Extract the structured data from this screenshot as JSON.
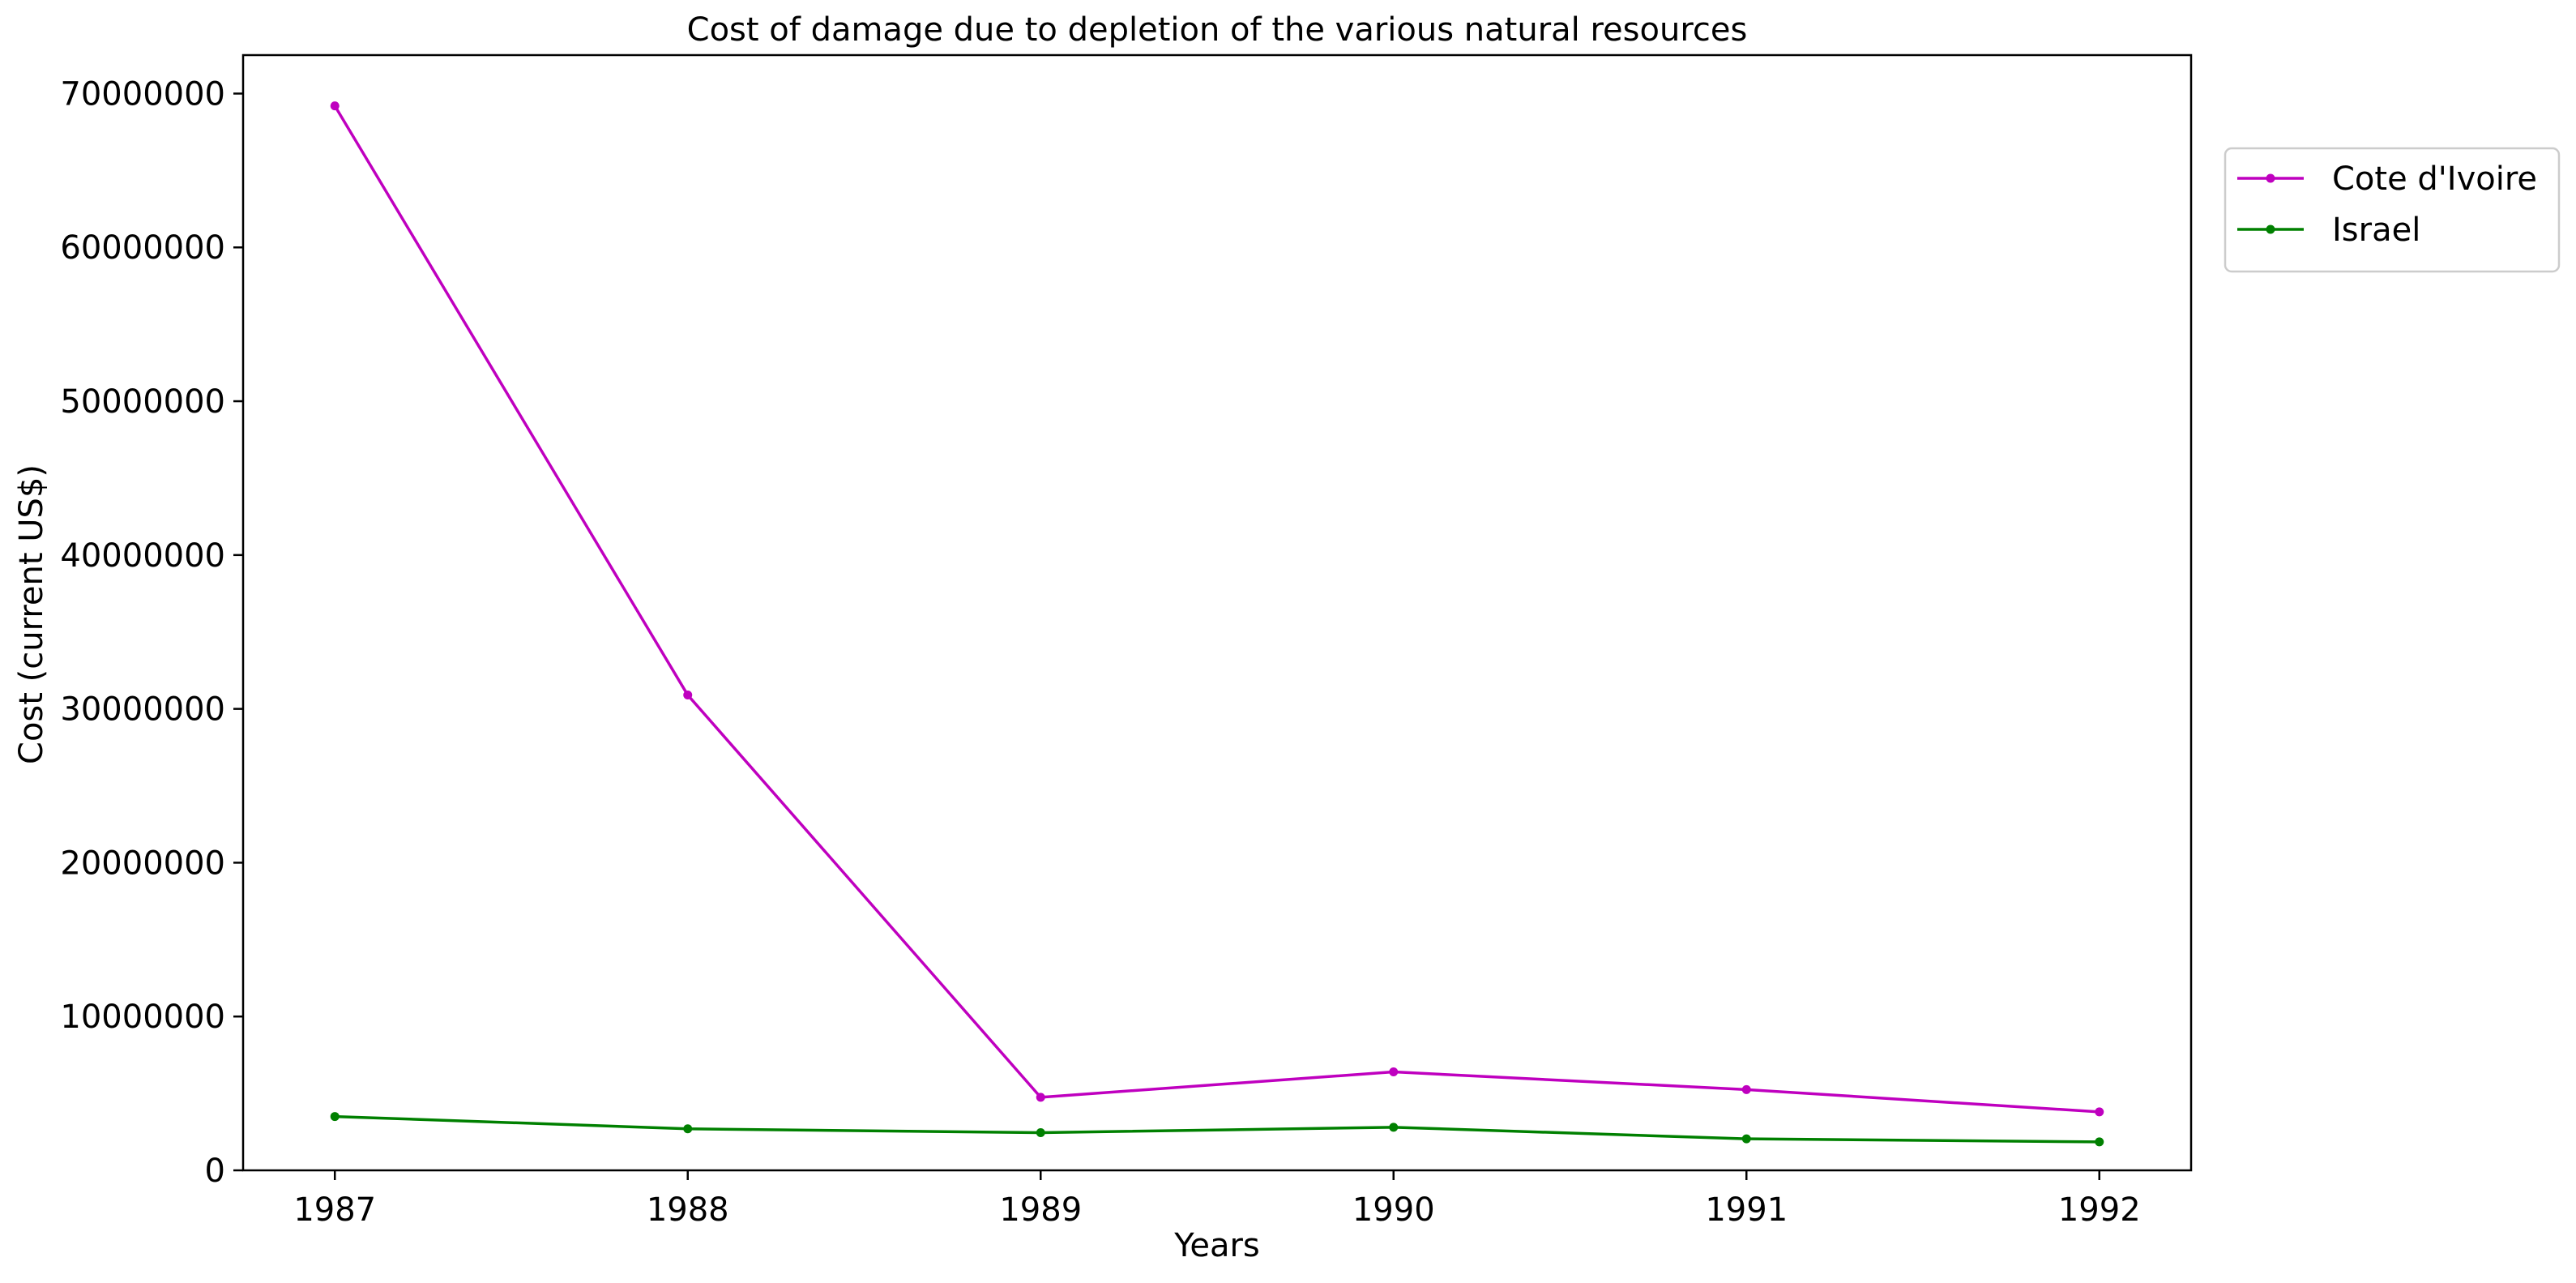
{
  "chart_data": {
    "type": "line",
    "title": "Cost of damage due to depletion of the various natural resources",
    "xlabel": "Years",
    "ylabel": "Cost (current US$)",
    "x": [
      1987,
      1988,
      1989,
      1990,
      1991,
      1992
    ],
    "xlim": [
      1986.74,
      1992.26
    ],
    "ylim": [
      0,
      72500000
    ],
    "yticks": [
      0,
      10000000,
      20000000,
      30000000,
      40000000,
      50000000,
      60000000,
      70000000
    ],
    "ytick_labels": [
      "0",
      "10000000",
      "20000000",
      "30000000",
      "40000000",
      "50000000",
      "60000000",
      "70000000"
    ],
    "xtick_labels": [
      "1987",
      "1988",
      "1989",
      "1990",
      "1991",
      "1992"
    ],
    "grid": false,
    "legend_position": "upper-right-outside",
    "series": [
      {
        "name": "Cote d'Ivoire",
        "color": "#bf00bf",
        "values": [
          69200000,
          30900000,
          4750000,
          6400000,
          5250000,
          3800000
        ]
      },
      {
        "name": "Israel",
        "color": "#008000",
        "values": [
          3500000,
          2700000,
          2450000,
          2800000,
          2050000,
          1850000
        ]
      }
    ]
  }
}
